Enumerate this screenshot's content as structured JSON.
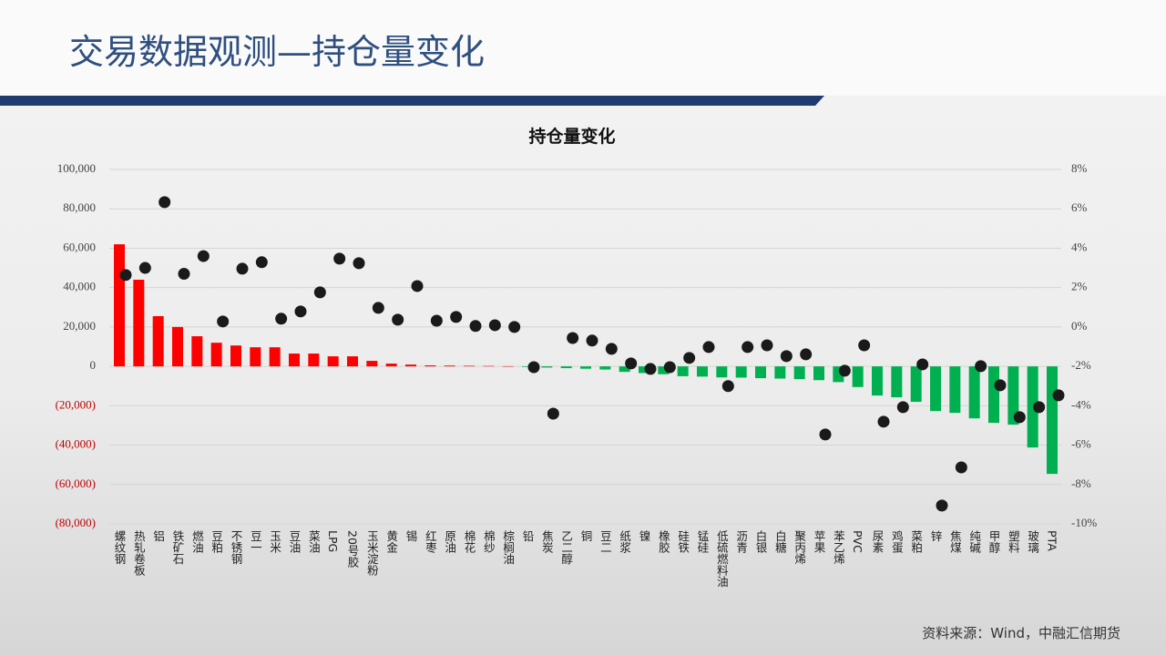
{
  "header": {
    "title": "交易数据观测—持仓量变化"
  },
  "chart_data": {
    "type": "bar",
    "title": "持仓量变化",
    "categories": [
      "螺纹钢",
      "热轧卷板",
      "铝",
      "铁矿石",
      "燃油",
      "豆粕",
      "不锈钢",
      "豆一",
      "玉米",
      "豆油",
      "菜油",
      "LPG",
      "20号胶",
      "玉米淀粉",
      "黄金",
      "锡",
      "红枣",
      "原油",
      "棉花",
      "棉纱",
      "棕榈油",
      "铅",
      "焦炭",
      "乙二醇",
      "铜",
      "豆二",
      "纸浆",
      "镍",
      "橡胶",
      "硅铁",
      "锰硅",
      "低硫燃料油",
      "沥青",
      "白银",
      "白糖",
      "聚丙烯",
      "苹果",
      "苯乙烯",
      "PVC",
      "尿素",
      "鸡蛋",
      "菜粕",
      "锌",
      "焦煤",
      "纯碱",
      "甲醇",
      "塑料",
      "玻璃",
      "PTA"
    ],
    "series": [
      {
        "type": "bar",
        "color": "#ff0000",
        "negative_color": "#00b050",
        "values": [
          62000,
          44000,
          25500,
          20000,
          15300,
          12000,
          10600,
          9700,
          9700,
          6500,
          6500,
          5100,
          5100,
          2800,
          1400,
          900,
          500,
          400,
          300,
          200,
          100,
          -300,
          -600,
          -900,
          -1200,
          -1600,
          -2800,
          -3400,
          -4000,
          -5000,
          -5200,
          -5600,
          -5700,
          -6000,
          -6200,
          -6500,
          -7000,
          -8000,
          -10500,
          -14800,
          -15700,
          -18000,
          -22700,
          -23600,
          -26400,
          -28700,
          -29600,
          -41200,
          -54600
        ]
      },
      {
        "type": "scatter",
        "axis": "y2",
        "color": "#1a1a1a",
        "values": [
          2.64,
          3.0,
          6.34,
          2.7,
          3.6,
          0.28,
          2.96,
          3.29,
          0.42,
          0.79,
          1.76,
          3.47,
          3.24,
          0.97,
          0.37,
          2.08,
          0.32,
          0.51,
          0.05,
          0.09,
          0,
          -2.04,
          -4.4,
          -0.56,
          -0.69,
          -1.11,
          -1.85,
          -2.13,
          -2.04,
          -1.57,
          -1.02,
          -3.0,
          -1.02,
          -0.93,
          -1.48,
          -1.39,
          -5.46,
          -2.22,
          -0.93,
          -4.81,
          -4.07,
          -1.9,
          -9.07,
          -7.13,
          -1.99,
          -2.96,
          -4.58,
          -4.07,
          -3.47
        ]
      }
    ],
    "ylim": [
      -80000,
      100000
    ],
    "yticks": [
      {
        "value": 100000,
        "label": "100,000"
      },
      {
        "value": 80000,
        "label": "80,000"
      },
      {
        "value": 60000,
        "label": "60,000"
      },
      {
        "value": 40000,
        "label": "40,000"
      },
      {
        "value": 20000,
        "label": "20,000"
      },
      0,
      {
        "value": -20000,
        "label": "(20,000)"
      },
      {
        "value": -40000,
        "label": "(40,000)"
      },
      {
        "value": -60000,
        "label": "(60,000)"
      },
      {
        "value": -80000,
        "label": "(80,000)"
      }
    ],
    "y2lim": [
      -10,
      8
    ],
    "y2ticks": [
      {
        "value": 8,
        "label": "8%"
      },
      {
        "value": 6,
        "label": "6%"
      },
      {
        "value": 4,
        "label": "4%"
      },
      {
        "value": 2,
        "label": "2%"
      },
      {
        "value": 0,
        "label": "0%"
      },
      {
        "value": -2,
        "label": "-2%"
      },
      {
        "value": -4,
        "label": "-4%"
      },
      {
        "value": -6,
        "label": "-6%"
      },
      {
        "value": -8,
        "label": "-8%"
      },
      {
        "value": -10,
        "label": "-10%"
      }
    ],
    "grid": true
  },
  "footer": {
    "source": "资料来源：Wind，中融汇信期货"
  }
}
